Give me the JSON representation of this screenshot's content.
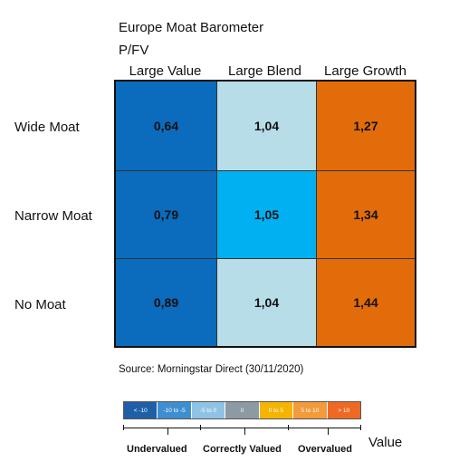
{
  "chart_data": {
    "type": "heatmap",
    "title": "Europe Moat Barometer",
    "subtitle": "P/FV",
    "columns": [
      "Large Value",
      "Large Blend",
      "Large Growth"
    ],
    "rows": [
      "Wide Moat",
      "Narrow Moat",
      "No Moat"
    ],
    "values": [
      [
        0.64,
        1.04,
        1.27
      ],
      [
        0.79,
        1.05,
        1.34
      ],
      [
        0.89,
        1.04,
        1.44
      ]
    ],
    "value_labels": [
      [
        "0,64",
        "1,04",
        "1,27"
      ],
      [
        "0,79",
        "1,05",
        "1,34"
      ],
      [
        "0,89",
        "1,04",
        "1,44"
      ]
    ],
    "cell_colors": [
      [
        "#0b6bbd",
        "#b6dde8",
        "#e36c0a"
      ],
      [
        "#0b6bbd",
        "#00b0f0",
        "#e36c0a"
      ],
      [
        "#0b6bbd",
        "#b6dde8",
        "#e36c0a"
      ]
    ],
    "source": "Source: Morningstar Direct (30/11/2020)",
    "legend": {
      "segments": [
        {
          "label": "< -10",
          "color": "#1f5fa8"
        },
        {
          "label": "-10 to -5",
          "color": "#3e8fd1"
        },
        {
          "label": "-5 to 0",
          "color": "#8fc3e6"
        },
        {
          "label": "0",
          "color": "#8c9aa3"
        },
        {
          "label": "0 to 5",
          "color": "#f5b400"
        },
        {
          "label": "5 to 10",
          "color": "#f39a3a"
        },
        {
          "label": "> 10",
          "color": "#ee6a24"
        }
      ],
      "groups": [
        "Undervalued",
        "Correctly Valued",
        "Overvalued"
      ],
      "axis_label": "Value"
    }
  }
}
